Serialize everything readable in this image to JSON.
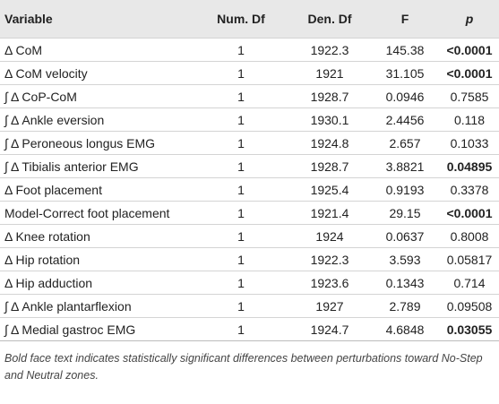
{
  "table": {
    "header": [
      "Variable",
      "Num. Df",
      "Den. Df",
      "F",
      "p"
    ],
    "rows": [
      [
        "Δ CoM",
        "1",
        "1922.3",
        "145.38",
        "<0.0001"
      ],
      [
        "Δ CoM velocity",
        "1",
        "1921",
        "31.105",
        "<0.0001"
      ],
      [
        "∫ Δ CoP-CoM",
        "1",
        "1928.7",
        "0.0946",
        "0.7585"
      ],
      [
        "∫ Δ Ankle eversion",
        "1",
        "1930.1",
        "2.4456",
        "0.118"
      ],
      [
        "∫ Δ Peroneous longus EMG",
        "1",
        "1924.8",
        "2.657",
        "0.1033"
      ],
      [
        "∫ Δ Tibialis anterior EMG",
        "1",
        "1928.7",
        "3.8821",
        "0.04895"
      ],
      [
        "Δ Foot placement",
        "1",
        "1925.4",
        "0.9193",
        "0.3378"
      ],
      [
        "Model-Correct foot placement",
        "1",
        "1921.4",
        "29.15",
        "<0.0001"
      ],
      [
        "Δ Knee rotation",
        "1",
        "1924",
        "0.0637",
        "0.8008"
      ],
      [
        "Δ Hip rotation",
        "1",
        "1922.3",
        "3.593",
        "0.05817"
      ],
      [
        "Δ Hip adduction",
        "1",
        "1923.6",
        "0.1343",
        "0.714"
      ],
      [
        "∫ Δ Ankle plantarflexion",
        "1",
        "1927",
        "2.789",
        "0.09508"
      ],
      [
        "∫ Δ Medial gastroc EMG",
        "1",
        "1924.7",
        "4.6848",
        "0.03055"
      ]
    ],
    "p_bold": [
      true,
      true,
      false,
      false,
      false,
      true,
      false,
      true,
      false,
      false,
      false,
      false,
      true
    ],
    "footnote": "Bold face text indicates statistically significant differences between perturbations toward No-Step and Neutral zones."
  }
}
